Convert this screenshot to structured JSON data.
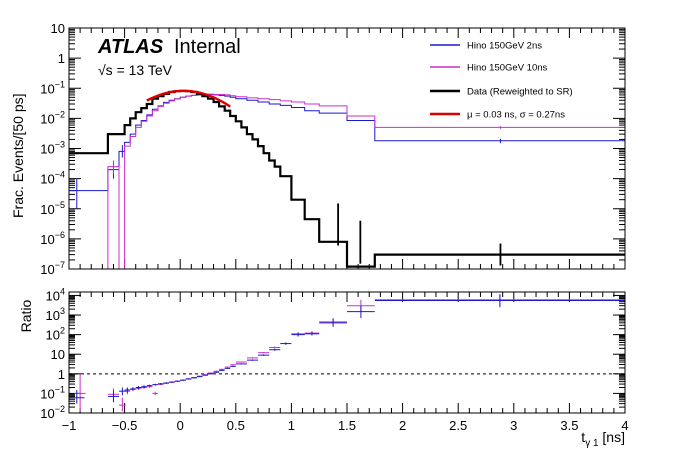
{
  "annotations": {
    "atlas": "ATLAS",
    "internal": "Internal",
    "energy": "√s = 13 TeV"
  },
  "chart_data": [
    {
      "type": "line",
      "panel": "top",
      "ylabel": "Frac. Events/[50 ps]",
      "xlim": [
        -1,
        4
      ],
      "ylim": [
        1e-07,
        10
      ],
      "yscale": "log",
      "y_ticks": [
        1e-07,
        1e-06,
        1e-05,
        0.0001,
        0.001,
        0.01,
        0.1,
        1,
        10
      ],
      "y_tick_labels": [
        "10^-7",
        "10^-6",
        "10^-5",
        "10^-4",
        "10^-3",
        "10^-2",
        "10^-1",
        "1",
        "10"
      ],
      "legend": {
        "placement": "top-right",
        "entries": [
          "Hino 150GeV 2ns",
          "Hino 150GeV 10ns",
          "Data (Reweighted to SR)",
          "μ = 0.03 ns,    σ = 0.27ns"
        ]
      },
      "series": [
        {
          "name": "Data (Reweighted to SR)",
          "color": "#000000",
          "style": "step",
          "edges": [
            -1,
            -0.65,
            -0.5,
            -0.45,
            -0.4,
            -0.35,
            -0.3,
            -0.25,
            -0.2,
            -0.15,
            -0.1,
            -0.05,
            0,
            0.05,
            0.1,
            0.15,
            0.2,
            0.25,
            0.3,
            0.35,
            0.4,
            0.45,
            0.5,
            0.55,
            0.6,
            0.65,
            0.7,
            0.75,
            0.8,
            0.85,
            0.9,
            1.0,
            1.12,
            1.25,
            1.5,
            1.75,
            4
          ],
          "values": [
            0.0007,
            0.003,
            0.006,
            0.01,
            0.016,
            0.022,
            0.03,
            0.045,
            0.055,
            0.065,
            0.075,
            0.08,
            0.082,
            0.08,
            0.075,
            0.065,
            0.055,
            0.045,
            0.035,
            0.025,
            0.018,
            0.012,
            0.008,
            0.005,
            0.003,
            0.002,
            0.0012,
            0.0007,
            0.0004,
            0.00025,
            0.00012,
            2e-05,
            4.5e-06,
            8e-07,
            1.2e-07,
            3e-07
          ],
          "errors": [
            {
              "x": 1.42,
              "y": 3e-06,
              "lo": 6e-07,
              "hi": 1.5e-05
            },
            {
              "x": 1.62,
              "y": 8e-07,
              "lo": 1.5e-07,
              "hi": 4e-06
            },
            {
              "x": 2.88,
              "y": 3e-07,
              "lo": 1.3e-07,
              "hi": 7e-07
            }
          ]
        },
        {
          "name": "Hino 150GeV 2ns",
          "color": "#1a1acc",
          "style": "step",
          "edges": [
            -1,
            -0.85,
            -0.75,
            -0.65,
            -0.55,
            -0.5,
            -0.45,
            -0.4,
            -0.35,
            -0.3,
            -0.25,
            -0.2,
            -0.15,
            -0.1,
            -0.05,
            0,
            0.05,
            0.1,
            0.15,
            0.2,
            0.25,
            0.3,
            0.35,
            0.4,
            0.45,
            0.5,
            0.6,
            0.7,
            0.8,
            0.9,
            1.0,
            1.12,
            1.25,
            1.5,
            1.75,
            4
          ],
          "values": [
            4e-05,
            4e-05,
            4e-05,
            0.0002,
            0.0008,
            0.0016,
            0.003,
            0.006,
            0.0085,
            0.013,
            0.02,
            0.026,
            0.034,
            0.04,
            0.045,
            0.05,
            0.055,
            0.058,
            0.06,
            0.062,
            0.062,
            0.06,
            0.058,
            0.055,
            0.05,
            0.045,
            0.04,
            0.035,
            0.03,
            0.027,
            0.023,
            0.018,
            0.015,
            0.0085,
            0.0018
          ],
          "errors": [
            {
              "x": -0.93,
              "y": 4e-05,
              "lo": 1e-05,
              "hi": 0.0001
            },
            {
              "x": -0.6,
              "y": 0.0002,
              "lo": 0.0001,
              "hi": 0.0004
            },
            {
              "x": -0.52,
              "y": 0.0008,
              "lo": 0.0005,
              "hi": 0.0013
            },
            {
              "x": 2.88,
              "y": 0.0018,
              "lo": 0.0015,
              "hi": 0.0021
            }
          ]
        },
        {
          "name": "Hino 150GeV 10ns",
          "color": "#cc2fcc",
          "style": "step",
          "edges": [
            -1,
            -0.85,
            -0.7,
            -0.65,
            -0.55,
            -0.5,
            -0.45,
            -0.4,
            -0.35,
            -0.3,
            -0.25,
            -0.2,
            -0.15,
            -0.1,
            -0.05,
            0,
            0.05,
            0.1,
            0.15,
            0.2,
            0.25,
            0.3,
            0.35,
            0.4,
            0.45,
            0.5,
            0.6,
            0.7,
            0.8,
            0.9,
            1.0,
            1.12,
            1.25,
            1.5,
            1.75,
            4
          ],
          "values": [
            1e-07,
            1e-07,
            1e-07,
            0.00025,
            1e-07,
            0.0012,
            0.0025,
            0.005,
            0.008,
            0.012,
            0.018,
            0.025,
            0.032,
            0.038,
            0.044,
            0.05,
            0.055,
            0.058,
            0.06,
            0.062,
            0.064,
            0.062,
            0.062,
            0.06,
            0.056,
            0.052,
            0.048,
            0.045,
            0.042,
            0.038,
            0.035,
            0.03,
            0.026,
            0.012,
            0.005
          ],
          "errors": [
            {
              "x": -0.6,
              "y": 0.00025,
              "lo": 0.00015,
              "hi": 0.0004
            },
            {
              "x": 2.88,
              "y": 0.005,
              "lo": 0.0045,
              "hi": 0.0055
            }
          ]
        },
        {
          "name": "μ = 0.03 ns,    σ = 0.27ns",
          "color": "#dd0000",
          "style": "gaussian",
          "mu": 0.03,
          "sigma": 0.27,
          "amplitude": 0.082,
          "x_range": [
            -0.3,
            0.45
          ]
        }
      ]
    },
    {
      "type": "scatter",
      "panel": "bottom",
      "xlabel": "t_γ1 [ns]",
      "ylabel": "Ratio",
      "xlim": [
        -1,
        4
      ],
      "ylim": [
        0.01,
        15000
      ],
      "yscale": "log",
      "x_ticks": [
        -1,
        -0.5,
        0,
        0.5,
        1,
        1.5,
        2,
        2.5,
        3,
        3.5,
        4
      ],
      "x_tick_labels": [
        "−1",
        "−0.5",
        "0",
        "0.5",
        "1",
        "1.5",
        "2",
        "2.5",
        "3",
        "3.5",
        "4"
      ],
      "y_ticks": [
        0.01,
        0.1,
        1,
        10,
        100,
        1000,
        10000
      ],
      "y_tick_labels": [
        "10^-2",
        "10^-1",
        "1",
        "10",
        "10^2",
        "10^3",
        "10^4"
      ],
      "reference_line": 1,
      "series": [
        {
          "name": "Hino 150GeV 2ns",
          "color": "#1a1acc",
          "points": [
            {
              "x": -0.93,
              "xw": 0.07,
              "y": 0.06,
              "lo": 0.03,
              "hi": 0.15
            },
            {
              "x": -0.6,
              "xw": 0.05,
              "y": 0.07,
              "lo": 0.035,
              "hi": 0.14
            },
            {
              "x": -0.52,
              "xw": 0.03,
              "y": 0.13,
              "lo": 0.08,
              "hi": 0.2
            },
            {
              "x": -0.475,
              "xw": 0.025,
              "y": 0.15,
              "lo": 0.11,
              "hi": 0.2
            },
            {
              "x": -0.425,
              "xw": 0.025,
              "y": 0.17,
              "lo": 0.14,
              "hi": 0.21
            },
            {
              "x": -0.375,
              "xw": 0.025,
              "y": 0.2,
              "lo": 0.17,
              "hi": 0.24
            },
            {
              "x": -0.325,
              "xw": 0.025,
              "y": 0.22,
              "lo": 0.19,
              "hi": 0.26
            },
            {
              "x": -0.275,
              "xw": 0.025,
              "y": 0.25,
              "lo": 0.22,
              "hi": 0.28
            },
            {
              "x": -0.225,
              "xw": 0.025,
              "y": 0.28,
              "lo": 0.25,
              "hi": 0.31
            },
            {
              "x": -0.175,
              "xw": 0.025,
              "y": 0.31,
              "lo": 0.28,
              "hi": 0.34
            },
            {
              "x": -0.125,
              "xw": 0.025,
              "y": 0.34,
              "lo": 0.31,
              "hi": 0.37
            },
            {
              "x": -0.075,
              "xw": 0.025,
              "y": 0.38,
              "lo": 0.35,
              "hi": 0.41
            },
            {
              "x": -0.025,
              "xw": 0.025,
              "y": 0.42,
              "lo": 0.39,
              "hi": 0.45
            },
            {
              "x": 0.025,
              "xw": 0.025,
              "y": 0.47,
              "lo": 0.44,
              "hi": 0.5
            },
            {
              "x": 0.075,
              "xw": 0.025,
              "y": 0.54,
              "lo": 0.51,
              "hi": 0.57
            },
            {
              "x": 0.125,
              "xw": 0.025,
              "y": 0.62,
              "lo": 0.59,
              "hi": 0.65
            },
            {
              "x": 0.175,
              "xw": 0.025,
              "y": 0.72,
              "lo": 0.68,
              "hi": 0.76
            },
            {
              "x": 0.225,
              "xw": 0.025,
              "y": 0.85,
              "lo": 0.8,
              "hi": 0.9
            },
            {
              "x": 0.275,
              "xw": 0.025,
              "y": 1.0,
              "lo": 0.94,
              "hi": 1.06
            },
            {
              "x": 0.325,
              "xw": 0.025,
              "y": 1.2,
              "lo": 1.13,
              "hi": 1.28
            },
            {
              "x": 0.375,
              "xw": 0.025,
              "y": 1.5,
              "lo": 1.4,
              "hi": 1.6
            },
            {
              "x": 0.425,
              "xw": 0.025,
              "y": 1.9,
              "lo": 1.78,
              "hi": 2.03
            },
            {
              "x": 0.475,
              "xw": 0.025,
              "y": 2.4,
              "lo": 2.25,
              "hi": 2.56
            },
            {
              "x": 0.55,
              "xw": 0.05,
              "y": 3.2,
              "lo": 3.0,
              "hi": 3.45
            },
            {
              "x": 0.65,
              "xw": 0.05,
              "y": 5.0,
              "lo": 4.6,
              "hi": 5.4
            },
            {
              "x": 0.75,
              "xw": 0.05,
              "y": 9.0,
              "lo": 8.2,
              "hi": 9.8
            },
            {
              "x": 0.85,
              "xw": 0.05,
              "y": 17,
              "lo": 15,
              "hi": 19
            },
            {
              "x": 0.95,
              "xw": 0.05,
              "y": 35,
              "lo": 30,
              "hi": 40
            },
            {
              "x": 1.06,
              "xw": 0.06,
              "y": 100,
              "lo": 80,
              "hi": 125
            },
            {
              "x": 1.185,
              "xw": 0.065,
              "y": 110,
              "lo": 90,
              "hi": 140
            },
            {
              "x": 1.375,
              "xw": 0.125,
              "y": 400,
              "lo": 250,
              "hi": 650
            },
            {
              "x": 1.625,
              "xw": 0.125,
              "y": 1500,
              "lo": 700,
              "hi": 3000
            },
            {
              "x": 2.875,
              "xw": 1.125,
              "y": 5500,
              "lo": 2500,
              "hi": 11000
            }
          ]
        },
        {
          "name": "Hino 150GeV 10ns",
          "color": "#cc2fcc",
          "points": [
            {
              "x": -0.9,
              "xw": 0.05,
              "y": 0.1,
              "lo": 0.012,
              "hi": 1.0
            },
            {
              "x": -0.6,
              "xw": 0.05,
              "y": 0.09,
              "lo": 0.045,
              "hi": 0.18
            },
            {
              "x": -0.52,
              "xw": 0.03,
              "y": 0.025,
              "lo": 0.012,
              "hi": 0.06
            },
            {
              "x": -0.475,
              "xw": 0.025,
              "y": 0.13,
              "lo": 0.09,
              "hi": 0.18
            },
            {
              "x": -0.425,
              "xw": 0.025,
              "y": 0.16,
              "lo": 0.13,
              "hi": 0.2
            },
            {
              "x": -0.375,
              "xw": 0.025,
              "y": 0.18,
              "lo": 0.15,
              "hi": 0.22
            },
            {
              "x": -0.325,
              "xw": 0.025,
              "y": 0.2,
              "lo": 0.17,
              "hi": 0.24
            },
            {
              "x": -0.275,
              "xw": 0.025,
              "y": 0.22,
              "lo": 0.19,
              "hi": 0.26
            },
            {
              "x": -0.225,
              "xw": 0.025,
              "y": 0.1,
              "lo": 0.08,
              "hi": 0.12
            },
            {
              "x": -0.175,
              "xw": 0.025,
              "y": 0.29,
              "lo": 0.26,
              "hi": 0.32
            },
            {
              "x": -0.125,
              "xw": 0.025,
              "y": 0.33,
              "lo": 0.3,
              "hi": 0.36
            },
            {
              "x": -0.075,
              "xw": 0.025,
              "y": 0.37,
              "lo": 0.34,
              "hi": 0.4
            },
            {
              "x": -0.025,
              "xw": 0.025,
              "y": 0.42,
              "lo": 0.39,
              "hi": 0.45
            },
            {
              "x": 0.025,
              "xw": 0.025,
              "y": 0.48,
              "lo": 0.45,
              "hi": 0.51
            },
            {
              "x": 0.075,
              "xw": 0.025,
              "y": 0.56,
              "lo": 0.53,
              "hi": 0.59
            },
            {
              "x": 0.125,
              "xw": 0.025,
              "y": 0.65,
              "lo": 0.62,
              "hi": 0.68
            },
            {
              "x": 0.175,
              "xw": 0.025,
              "y": 0.76,
              "lo": 0.72,
              "hi": 0.8
            },
            {
              "x": 0.225,
              "xw": 0.025,
              "y": 0.9,
              "lo": 0.85,
              "hi": 0.95
            },
            {
              "x": 0.275,
              "xw": 0.025,
              "y": 1.1,
              "lo": 1.04,
              "hi": 1.16
            },
            {
              "x": 0.325,
              "xw": 0.025,
              "y": 1.35,
              "lo": 1.27,
              "hi": 1.43
            },
            {
              "x": 0.375,
              "xw": 0.025,
              "y": 1.7,
              "lo": 1.6,
              "hi": 1.8
            },
            {
              "x": 0.425,
              "xw": 0.025,
              "y": 2.2,
              "lo": 2.07,
              "hi": 2.34
            },
            {
              "x": 0.475,
              "xw": 0.025,
              "y": 2.9,
              "lo": 2.72,
              "hi": 3.08
            },
            {
              "x": 0.55,
              "xw": 0.05,
              "y": 4.0,
              "lo": 3.75,
              "hi": 4.3
            },
            {
              "x": 0.65,
              "xw": 0.05,
              "y": 6.5,
              "lo": 6.0,
              "hi": 7.0
            },
            {
              "x": 0.75,
              "xw": 0.05,
              "y": 12,
              "lo": 11,
              "hi": 13
            },
            {
              "x": 0.85,
              "xw": 0.05,
              "y": 22,
              "lo": 20,
              "hi": 25
            },
            {
              "x": 1.06,
              "xw": 0.06,
              "y": 110,
              "lo": 90,
              "hi": 135
            },
            {
              "x": 1.185,
              "xw": 0.065,
              "y": 120,
              "lo": 100,
              "hi": 150
            },
            {
              "x": 1.375,
              "xw": 0.125,
              "y": 450,
              "lo": 300,
              "hi": 700
            },
            {
              "x": 1.625,
              "xw": 0.125,
              "y": 3000,
              "lo": 1500,
              "hi": 6000
            },
            {
              "x": 2.875,
              "xw": 1.125,
              "y": 6000,
              "lo": 3000,
              "hi": 12000
            }
          ]
        }
      ]
    }
  ]
}
